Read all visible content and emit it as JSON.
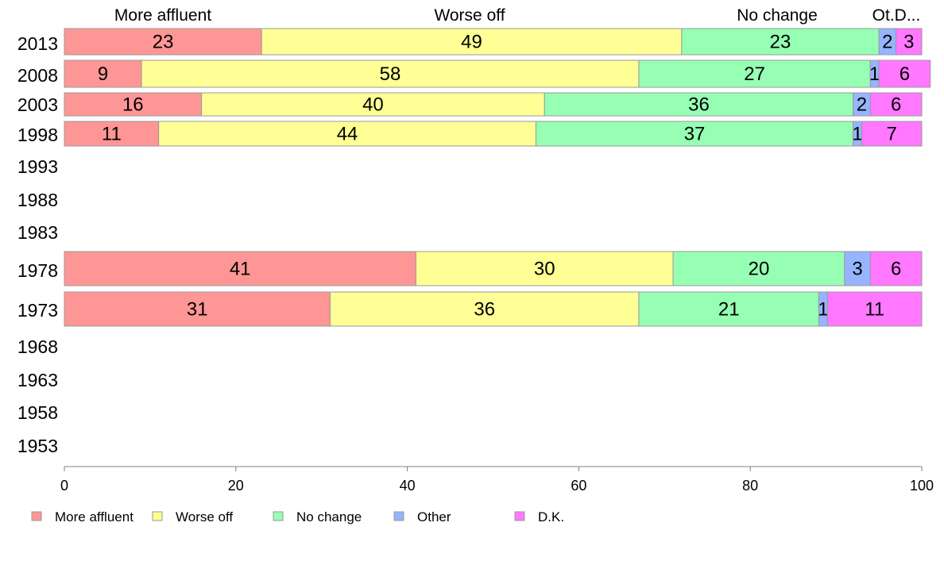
{
  "chart_data": {
    "type": "bar",
    "orientation": "horizontal",
    "stacked": true,
    "title": "",
    "xlabel": "",
    "ylabel": "",
    "xlim": [
      0,
      100
    ],
    "x_ticks": [
      "0",
      "20",
      "40",
      "60",
      "80",
      "100"
    ],
    "grid": false,
    "legend_position": "bottom",
    "column_headers": [
      "More affluent",
      "Worse off",
      "No change",
      "Ot.D..."
    ],
    "categories": [
      "2013",
      "2008",
      "2003",
      "1998",
      "1993",
      "1988",
      "1983",
      "1978",
      "1973",
      "1968",
      "1963",
      "1958",
      "1953"
    ],
    "series": [
      {
        "name": "More affluent",
        "color": "#ff9696",
        "values": [
          23,
          9,
          16,
          11,
          null,
          null,
          null,
          41,
          31,
          null,
          null,
          null,
          null
        ]
      },
      {
        "name": "Worse off",
        "color": "#ffff96",
        "values": [
          49,
          58,
          40,
          44,
          null,
          null,
          null,
          30,
          36,
          null,
          null,
          null,
          null
        ]
      },
      {
        "name": "No change",
        "color": "#96ffb4",
        "values": [
          23,
          27,
          36,
          37,
          null,
          null,
          null,
          20,
          21,
          null,
          null,
          null,
          null
        ]
      },
      {
        "name": "Other",
        "color": "#96b4ff",
        "values": [
          2,
          1,
          2,
          1,
          null,
          null,
          null,
          3,
          1,
          null,
          null,
          null,
          null
        ]
      },
      {
        "name": "D.K.",
        "color": "#ff78ff",
        "values": [
          3,
          6,
          6,
          7,
          null,
          null,
          null,
          6,
          11,
          null,
          null,
          null,
          null
        ]
      }
    ]
  }
}
